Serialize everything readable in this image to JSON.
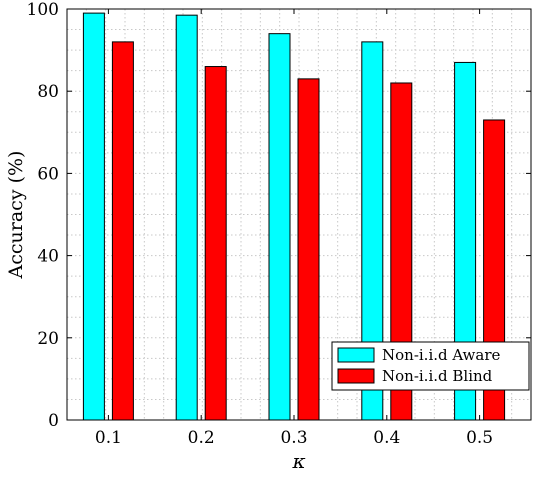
{
  "chart_data": {
    "type": "bar",
    "title": "",
    "xlabel": "κ",
    "ylabel": "Accuracy (%)",
    "categories": [
      "0.1",
      "0.2",
      "0.3",
      "0.4",
      "0.5"
    ],
    "series": [
      {
        "name": "Non-i.i.d Aware",
        "values": [
          99,
          98.5,
          94,
          92,
          87
        ]
      },
      {
        "name": "Non-i.i.d Blind",
        "values": [
          92,
          86,
          83,
          82,
          73
        ]
      }
    ],
    "ylim": [
      0,
      100
    ],
    "yticks": [
      0,
      20,
      40,
      60,
      80,
      100
    ],
    "grid": true,
    "legend_position": "bottom-right"
  },
  "colors": {
    "series": [
      "#00ffff",
      "#ff0000"
    ],
    "grid": "#c8c8c8",
    "axis": "#000000"
  }
}
